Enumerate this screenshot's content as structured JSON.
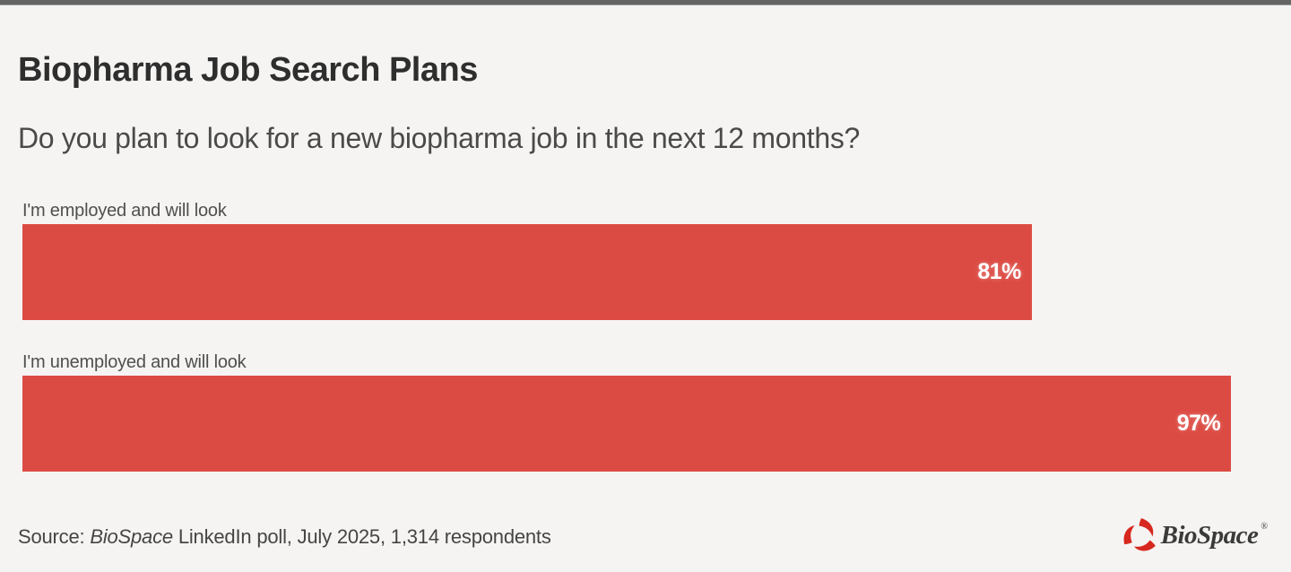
{
  "page": {
    "background_color": "#f5f4f2",
    "topbar_color": "#646464"
  },
  "header": {
    "title": "Biopharma Job Search Plans",
    "subtitle": "Do you plan to look for a new biopharma job in the next 12 months?"
  },
  "chart_data": {
    "type": "bar",
    "orientation": "horizontal",
    "title": "Biopharma Job Search Plans",
    "subtitle": "Do you plan to look for a new biopharma job in the next 12 months?",
    "categories": [
      "I'm employed and will look",
      "I'm unemployed and will look"
    ],
    "values": [
      81,
      97
    ],
    "value_labels": [
      "81%",
      "97%"
    ],
    "xlim": [
      0,
      100
    ],
    "grid": false,
    "legend": false,
    "bar_color": "#dc4b43",
    "value_label_color": "#ffffff"
  },
  "footer": {
    "source_prefix": "Source: ",
    "source_brand": "BioSpace",
    "source_rest": " LinkedIn poll, July 2025, 1,314 respondents",
    "logo_text": "BioSpace",
    "logo_reg": "®",
    "logo_icon_color": "#d6281f"
  }
}
